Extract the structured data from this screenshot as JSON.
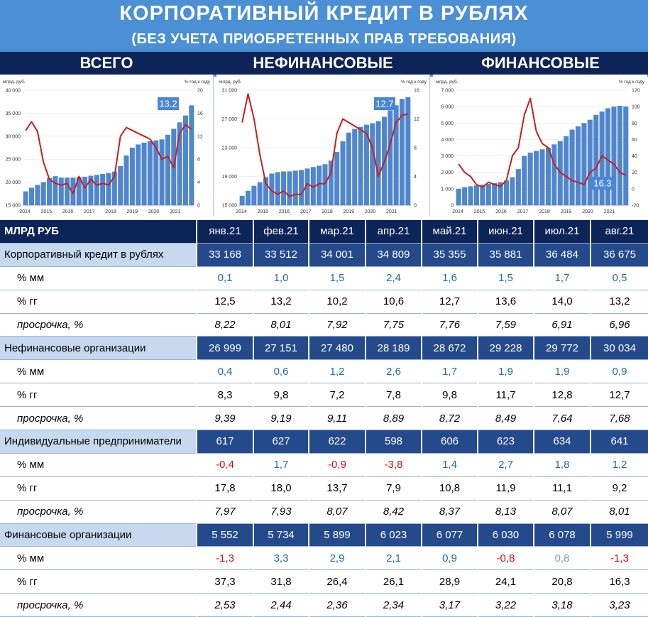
{
  "header": {
    "title": "КОРПОРАТИВНЫЙ КРЕДИТ В РУБЛЯХ",
    "subtitle": "(БЕЗ УЧЕТА ПРИОБРЕТЕННЫХ ПРАВ ТРЕБОВАНИЯ)",
    "sections": [
      "ВСЕГО",
      "НЕФИНАНСОВЫЕ",
      "ФИНАНСОВЫЕ"
    ]
  },
  "colors": {
    "bar": "#4f86cc",
    "line": "#c81e1e",
    "header_bg": "#4b8fd4",
    "navy": "#0d2459"
  },
  "chart_data": [
    {
      "type": "bar",
      "ylabel": "млрд. руб.",
      "y2label": "% год к году",
      "ylim": [
        15000,
        40000
      ],
      "y2lim": [
        0,
        20
      ],
      "yticks": [
        "40 000",
        "35 000",
        "30 000",
        "25 000",
        "20 000",
        "15 000"
      ],
      "y2ticks": [
        "20",
        "16",
        "12",
        "8",
        "4",
        "0"
      ],
      "categories": [
        "2014",
        "2015",
        "2016",
        "2017",
        "2018",
        "2019",
        "2020",
        "2021"
      ],
      "bars": [
        18000,
        18800,
        19400,
        20000,
        20900,
        21300,
        21000,
        21000,
        21000,
        21100,
        21200,
        21400,
        21600,
        21800,
        22000,
        22300,
        23500,
        25800,
        27500,
        28200,
        28600,
        28900,
        29100,
        29300,
        30300,
        31600,
        33000,
        34500,
        36700
      ],
      "line": [
        13.0,
        14.5,
        12.8,
        7.5,
        4.5,
        3.8,
        3.5,
        3.8,
        2.0,
        5.0,
        3.0,
        4.5,
        3.5,
        3.8,
        3.5,
        5.0,
        12.0,
        13.5,
        13.0,
        12.5,
        12.0,
        11.5,
        10.0,
        8.0,
        8.5,
        6.5,
        12.5,
        14.0,
        13.2
      ],
      "label": "13.2"
    },
    {
      "type": "bar",
      "ylabel": "млрд. руб.",
      "y2label": "% год к году",
      "ylim": [
        15000,
        31000
      ],
      "y2lim": [
        0,
        16
      ],
      "yticks": [
        "31 000",
        "27 000",
        "23 000",
        "19 000",
        "15 000"
      ],
      "y2ticks": [
        "16",
        "12",
        "8",
        "4",
        "0"
      ],
      "categories": [
        "2014",
        "2015",
        "2016",
        "2017",
        "2018",
        "2019",
        "2020",
        "2021"
      ],
      "bars": [
        16300,
        17000,
        17700,
        18200,
        18900,
        19400,
        19600,
        19700,
        19700,
        19800,
        19900,
        20100,
        20300,
        20500,
        20700,
        21200,
        22400,
        23900,
        25100,
        25600,
        25900,
        26200,
        26400,
        26700,
        27300,
        28200,
        28900,
        29800,
        30030
      ],
      "line": [
        11.5,
        15.5,
        12.0,
        7.0,
        3.0,
        2.0,
        1.5,
        2.0,
        1.2,
        1.5,
        1.5,
        3.0,
        2.5,
        3.0,
        3.0,
        4.5,
        10.0,
        12.0,
        11.5,
        11.0,
        10.5,
        10.0,
        8.0,
        4.0,
        6.0,
        8.5,
        11.5,
        12.5,
        12.7
      ],
      "label": "12.7"
    },
    {
      "type": "bar",
      "ylabel": "млрд. руб.",
      "y2label": "% год к году",
      "ylim": [
        0,
        7000
      ],
      "y2lim": [
        -20,
        120
      ],
      "yticks": [
        "7 000",
        "6 000",
        "5 000",
        "4 000",
        "3 000",
        "2 000",
        "1 000",
        "0"
      ],
      "y2ticks": [
        "120",
        "100",
        "80",
        "60",
        "40",
        "20",
        "0",
        "-20"
      ],
      "categories": [
        "2014",
        "2015",
        "2016",
        "2017",
        "2018",
        "2019",
        "2020",
        "2021"
      ],
      "bars": [
        1000,
        1100,
        1150,
        1200,
        1250,
        1300,
        1350,
        1400,
        1500,
        1700,
        2200,
        3000,
        3200,
        3300,
        3400,
        3500,
        3700,
        3900,
        4200,
        4600,
        4800,
        5000,
        5200,
        5500,
        5700,
        5900,
        6000,
        6050,
        6000
      ],
      "line": [
        30,
        20,
        15,
        5,
        2,
        8,
        5,
        3,
        10,
        40,
        50,
        90,
        110,
        70,
        55,
        50,
        30,
        20,
        15,
        10,
        8,
        5,
        20,
        25,
        40,
        35,
        30,
        20,
        16.3
      ],
      "label": "16.3"
    }
  ],
  "table": {
    "header": [
      "МЛРД РУБ",
      "янв.21",
      "фев.21",
      "мар.21",
      "апр.21",
      "май.21",
      "июн.21",
      "июл.21",
      "авг.21"
    ],
    "rows": [
      {
        "kind": "grp",
        "label": "Корпоративный кредит в рублях",
        "values": [
          "33 168",
          "33 512",
          "34 001",
          "34 809",
          "35 355",
          "35 881",
          "36 484",
          "36 675"
        ]
      },
      {
        "kind": "mm",
        "label": "% мм",
        "values": [
          "0,1",
          "1,0",
          "1,5",
          "2,4",
          "1,6",
          "1,5",
          "1,7",
          "0,5"
        ]
      },
      {
        "kind": "yy",
        "label": "% гг",
        "values": [
          "12,5",
          "13,2",
          "10,2",
          "10,6",
          "12,7",
          "13,6",
          "14,0",
          "13,2"
        ]
      },
      {
        "kind": "it",
        "label": "просрочка, %",
        "values": [
          "8,22",
          "8,01",
          "7,92",
          "7,75",
          "7,76",
          "7,59",
          "6,91",
          "6,96"
        ]
      },
      {
        "kind": "grp",
        "label": "Нефинансовые организации",
        "values": [
          "26 999",
          "27 151",
          "27 480",
          "28 189",
          "28 672",
          "29 228",
          "29 772",
          "30 034"
        ]
      },
      {
        "kind": "mm",
        "label": "% мм",
        "values": [
          "0,4",
          "0,6",
          "1,2",
          "2,6",
          "1,7",
          "1,9",
          "1,9",
          "0,9"
        ]
      },
      {
        "kind": "yy",
        "label": "% гг",
        "values": [
          "8,3",
          "9,8",
          "7,2",
          "7,8",
          "9,8",
          "11,7",
          "12,8",
          "12,7"
        ]
      },
      {
        "kind": "it",
        "label": "просрочка, %",
        "values": [
          "9,39",
          "9,19",
          "9,11",
          "8,89",
          "8,72",
          "8,49",
          "7,64",
          "7,68"
        ]
      },
      {
        "kind": "grp",
        "label": "Индивидуальные предприниматели",
        "values": [
          "617",
          "627",
          "622",
          "598",
          "606",
          "623",
          "634",
          "641"
        ]
      },
      {
        "kind": "mm",
        "label": "% мм",
        "values": [
          "-0,4",
          "1,7",
          "-0,9",
          "-3,8",
          "1,4",
          "2,7",
          "1,8",
          "1,2"
        ]
      },
      {
        "kind": "yy",
        "label": "% гг",
        "values": [
          "17,8",
          "18,0",
          "13,7",
          "7,9",
          "10,8",
          "11,9",
          "11,1",
          "9,2"
        ]
      },
      {
        "kind": "it",
        "label": "просрочка, %",
        "values": [
          "7,97",
          "7,93",
          "8,07",
          "8,42",
          "8,37",
          "8,13",
          "8,07",
          "8,01"
        ]
      },
      {
        "kind": "grp",
        "label": "Финансовые организации",
        "values": [
          "5 552",
          "5 734",
          "5 899",
          "6 023",
          "6 077",
          "6 030",
          "6 078",
          "5 999"
        ]
      },
      {
        "kind": "mm",
        "label": "% мм",
        "values": [
          "-1,3",
          "3,3",
          "2,9",
          "2,1",
          "0,9",
          "-0,8",
          "0,8",
          "-1,3"
        ]
      },
      {
        "kind": "yy",
        "label": "% гг",
        "values": [
          "37,3",
          "31,8",
          "26,4",
          "26,1",
          "28,9",
          "24,1",
          "20,8",
          "16,3"
        ]
      },
      {
        "kind": "it",
        "label": "просрочка, %",
        "values": [
          "2,53",
          "2,44",
          "2,36",
          "2,34",
          "3,17",
          "3,22",
          "3,18",
          "3,23"
        ]
      }
    ]
  }
}
